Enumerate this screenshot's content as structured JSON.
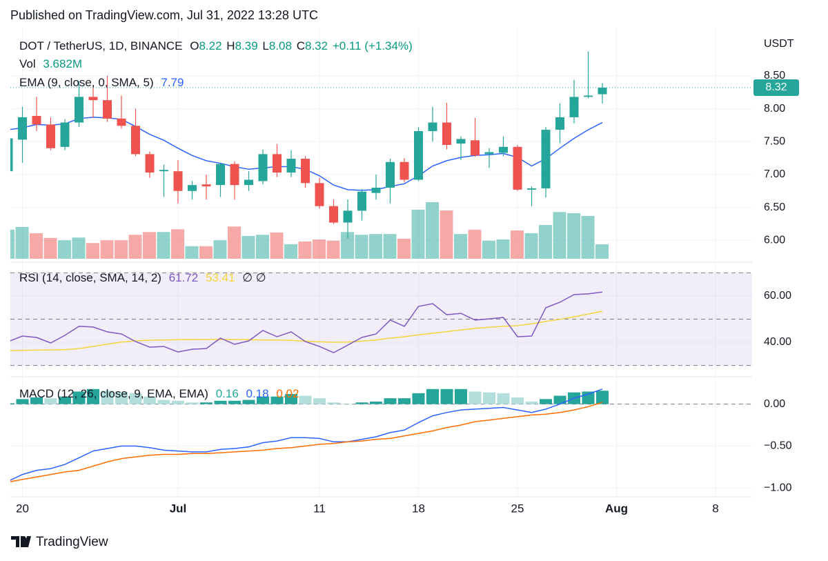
{
  "header": {
    "published": "Published on TradingView.com, Jul 31, 2022 13:28 UTC"
  },
  "footer": {
    "brand": "TradingView"
  },
  "chart_data": {
    "type": "candlestick",
    "title": "DOT / TetherUS, 1D, BINANCE",
    "legend_labels": {
      "open": "O",
      "high": "H",
      "low": "L",
      "close": "C"
    },
    "change": "+0.11 (+1.34%)",
    "y_label": "USDT",
    "up_color": "#26a69a",
    "down_color": "#ef5350",
    "categories": [
      null,
      "20",
      null,
      null,
      null,
      null,
      null,
      null,
      null,
      null,
      null,
      null,
      "Jul",
      null,
      null,
      null,
      null,
      null,
      null,
      null,
      null,
      null,
      "11",
      null,
      null,
      null,
      null,
      null,
      null,
      "18",
      null,
      null,
      null,
      null,
      null,
      null,
      "25",
      null,
      null,
      null,
      null,
      null,
      null,
      "Aug",
      null,
      null,
      null,
      null,
      null,
      null,
      "8",
      null,
      null
    ],
    "open": [
      7.05,
      7.53,
      7.89,
      7.76,
      7.42,
      7.79,
      8.18,
      8.13,
      7.85,
      7.74,
      7.31,
      7.05,
      7.05,
      6.75,
      6.85,
      6.84,
      7.16,
      6.84,
      6.9,
      7.31,
      7.03,
      7.24,
      6.87,
      6.52,
      6.27,
      6.45,
      6.72,
      6.8,
      7.19,
      6.92,
      7.66,
      7.79,
      7.47,
      7.52,
      7.31,
      7.33,
      7.42,
      6.77,
      6.79,
      7.68,
      7.87,
      8.18,
      8.22,
      null,
      null,
      null,
      null,
      null,
      null,
      null,
      null,
      null,
      null
    ],
    "high": [
      7.6,
      8.03,
      8.18,
      7.87,
      7.84,
      8.42,
      8.35,
      8.5,
      8.2,
      8.0,
      7.35,
      7.15,
      7.22,
      6.9,
      7.0,
      7.18,
      7.2,
      7.05,
      7.38,
      7.46,
      7.37,
      7.28,
      6.95,
      6.62,
      6.62,
      6.78,
      7.0,
      7.24,
      7.25,
      7.72,
      8.03,
      8.09,
      7.58,
      7.86,
      7.4,
      7.58,
      7.45,
      6.82,
      7.72,
      8.08,
      8.44,
      8.87,
      8.39,
      null,
      null,
      null,
      null,
      null,
      null,
      null,
      null,
      null,
      null
    ],
    "low": [
      7.0,
      7.18,
      7.66,
      7.37,
      7.37,
      7.72,
      7.86,
      7.8,
      7.7,
      7.28,
      6.95,
      6.66,
      6.56,
      6.62,
      6.62,
      6.66,
      6.62,
      6.75,
      6.85,
      6.96,
      6.96,
      6.8,
      6.48,
      6.25,
      6.03,
      6.3,
      6.62,
      6.56,
      6.88,
      6.9,
      7.5,
      7.38,
      7.22,
      7.27,
      7.1,
      7.28,
      6.75,
      6.52,
      6.65,
      7.48,
      7.78,
      8.16,
      8.08,
      null,
      null,
      null,
      null,
      null,
      null,
      null,
      null,
      null,
      null
    ],
    "close": [
      7.55,
      7.87,
      7.76,
      7.4,
      7.79,
      8.18,
      8.13,
      7.85,
      7.74,
      7.31,
      7.03,
      7.07,
      6.75,
      6.84,
      6.82,
      7.16,
      6.84,
      6.92,
      7.31,
      7.03,
      7.24,
      6.87,
      6.52,
      6.27,
      6.45,
      6.74,
      6.8,
      7.19,
      6.92,
      7.66,
      7.79,
      7.45,
      7.54,
      7.29,
      7.34,
      7.42,
      6.77,
      6.79,
      7.68,
      7.87,
      8.18,
      8.2,
      8.32,
      null,
      null,
      null,
      null,
      null,
      null,
      null,
      null,
      null,
      null
    ],
    "volume": {
      "name": "Vol",
      "values": [
        7.4,
        8.1,
        6.5,
        5.3,
        4.7,
        5.4,
        4.0,
        4.7,
        4.7,
        6.1,
        6.8,
        6.8,
        7.5,
        3.2,
        3.2,
        4.7,
        8.2,
        5.8,
        6.1,
        6.7,
        3.7,
        4.4,
        4.9,
        4.6,
        6.8,
        6.1,
        6.3,
        6.3,
        5.1,
        12.5,
        14.4,
        12.3,
        6.3,
        7.4,
        4.6,
        4.9,
        7.2,
        6.5,
        8.6,
        11.9,
        11.6,
        10.9,
        3.682,
        null,
        null,
        null,
        null,
        null,
        null,
        null,
        null,
        null,
        null
      ],
      "value_labels": [
        null,
        null,
        null,
        null,
        null,
        null,
        null,
        null,
        null,
        null,
        null,
        null,
        null,
        null,
        null,
        null,
        null,
        null,
        null,
        null,
        null,
        null,
        null,
        null,
        null,
        null,
        null,
        null,
        null,
        null,
        null,
        null,
        null,
        null,
        null,
        null,
        null,
        null,
        null,
        null,
        null,
        null,
        "3.682M",
        null,
        null,
        null,
        null,
        null,
        null,
        null,
        null,
        null,
        null
      ]
    },
    "series": [
      {
        "name": "EMA (9, close, 0, SMA, 5)",
        "color": "#2962ff",
        "values": [
          7.68,
          7.71,
          7.76,
          7.75,
          7.77,
          7.85,
          7.87,
          7.86,
          7.84,
          7.73,
          7.61,
          7.52,
          7.4,
          7.29,
          7.21,
          7.17,
          7.12,
          7.08,
          7.1,
          7.12,
          7.12,
          7.08,
          6.98,
          6.84,
          6.77,
          6.76,
          6.77,
          6.82,
          6.86,
          6.98,
          7.13,
          7.21,
          7.26,
          7.29,
          7.3,
          7.32,
          7.26,
          7.13,
          7.24,
          7.4,
          7.55,
          7.68,
          7.79,
          null,
          null,
          null,
          null,
          null,
          null,
          null,
          null,
          null,
          null
        ]
      }
    ],
    "ylim": [
      5.72,
      9.18
    ],
    "yticks": [
      {
        "value": 6,
        "label": "6.00"
      },
      {
        "value": 6.5,
        "label": "6.50"
      },
      {
        "value": 7,
        "label": "7.00"
      },
      {
        "value": 7.5,
        "label": "7.50"
      },
      {
        "value": 8,
        "label": "8.00"
      },
      {
        "value": 8.5,
        "label": "8.50"
      }
    ],
    "grid": true,
    "rsi": {
      "type": "line",
      "title": "RSI (14, close, SMA, 14, 2)",
      "extra": "∅ ∅",
      "band_color": "#7e57c2",
      "bands": [
        70,
        50,
        30
      ],
      "series": [
        {
          "color": "#7e57c2",
          "values": [
            40.3,
            42.7,
            42.1,
            39.7,
            43.0,
            46.9,
            46.6,
            44.5,
            43.6,
            40.3,
            37.9,
            38.2,
            35.8,
            37.0,
            37.3,
            41.8,
            39.1,
            40.6,
            45.1,
            42.4,
            44.5,
            40.3,
            38.2,
            35.5,
            38.8,
            42.1,
            43.6,
            49.6,
            46.9,
            55.5,
            56.7,
            51.9,
            52.5,
            49.6,
            50.1,
            50.7,
            42.4,
            42.7,
            54.9,
            57.3,
            60.6,
            60.9,
            61.72,
            null,
            null,
            null,
            null,
            null,
            null,
            null,
            null,
            null,
            null
          ]
        },
        {
          "color": "#f5d53b",
          "values": [
            36.4,
            36.5,
            36.6,
            36.7,
            36.8,
            37.3,
            38.2,
            39.2,
            40.1,
            40.6,
            40.9,
            41.0,
            41.1,
            41.1,
            41.2,
            41.2,
            41.2,
            41.1,
            41.0,
            41.0,
            40.8,
            40.5,
            40.2,
            40.0,
            40.1,
            40.5,
            41.0,
            41.8,
            42.4,
            43.2,
            43.9,
            44.6,
            45.3,
            46.0,
            46.5,
            46.9,
            47.2,
            48.0,
            49.0,
            49.9,
            51.0,
            52.2,
            53.41,
            null,
            null,
            null,
            null,
            null,
            null,
            null,
            null,
            null,
            null
          ]
        }
      ],
      "ylim": [
        25.4,
        73.1
      ],
      "yticks": [
        {
          "value": 40,
          "label": "40.00"
        },
        {
          "value": 60,
          "label": "60.00"
        }
      ]
    },
    "macd": {
      "type": "line",
      "title": "MACD (12, 26, close, 9, EMA, EMA)",
      "histogram": {
        "up_color": "#26a69a",
        "fade_color": "#b2dfdb",
        "values": [
          0.01,
          0.06,
          0.08,
          0.07,
          0.09,
          0.15,
          0.18,
          0.16,
          0.15,
          0.13,
          0.09,
          0.05,
          0.04,
          0.02,
          0.02,
          0.04,
          0.04,
          0.05,
          0.09,
          0.09,
          0.12,
          0.1,
          0.07,
          0.02,
          0.0,
          0.02,
          0.03,
          0.07,
          0.07,
          0.13,
          0.18,
          0.18,
          0.18,
          0.15,
          0.14,
          0.13,
          0.08,
          0.03,
          0.06,
          0.1,
          0.14,
          0.15,
          0.16,
          null,
          null,
          null,
          null,
          null,
          null,
          null,
          null,
          null,
          null
        ]
      },
      "series": [
        {
          "color": "#2962ff",
          "values": [
            -0.92,
            -0.84,
            -0.79,
            -0.77,
            -0.72,
            -0.64,
            -0.56,
            -0.53,
            -0.5,
            -0.5,
            -0.52,
            -0.55,
            -0.56,
            -0.57,
            -0.57,
            -0.54,
            -0.53,
            -0.51,
            -0.46,
            -0.44,
            -0.4,
            -0.4,
            -0.41,
            -0.45,
            -0.45,
            -0.42,
            -0.39,
            -0.34,
            -0.31,
            -0.22,
            -0.14,
            -0.1,
            -0.07,
            -0.06,
            -0.05,
            -0.04,
            -0.07,
            -0.1,
            -0.06,
            0.0,
            0.07,
            0.12,
            0.18,
            null,
            null,
            null,
            null,
            null,
            null,
            null,
            null,
            null,
            null
          ]
        },
        {
          "color": "#ff6d00",
          "values": [
            -0.93,
            -0.9,
            -0.87,
            -0.84,
            -0.81,
            -0.79,
            -0.74,
            -0.69,
            -0.65,
            -0.63,
            -0.61,
            -0.6,
            -0.6,
            -0.59,
            -0.59,
            -0.58,
            -0.57,
            -0.56,
            -0.55,
            -0.53,
            -0.52,
            -0.5,
            -0.48,
            -0.47,
            -0.45,
            -0.44,
            -0.42,
            -0.41,
            -0.38,
            -0.35,
            -0.32,
            -0.28,
            -0.25,
            -0.21,
            -0.19,
            -0.17,
            -0.15,
            -0.13,
            -0.12,
            -0.1,
            -0.07,
            -0.03,
            0.02,
            null,
            null,
            null,
            null,
            null,
            null,
            null,
            null,
            null,
            null
          ]
        }
      ],
      "ylim": [
        -1.09,
        0.31
      ],
      "yticks": [
        {
          "value": 0,
          "label": "0.00"
        },
        {
          "value": -0.5,
          "label": "−0.50"
        },
        {
          "value": -1,
          "label": "−1.00"
        }
      ]
    }
  }
}
